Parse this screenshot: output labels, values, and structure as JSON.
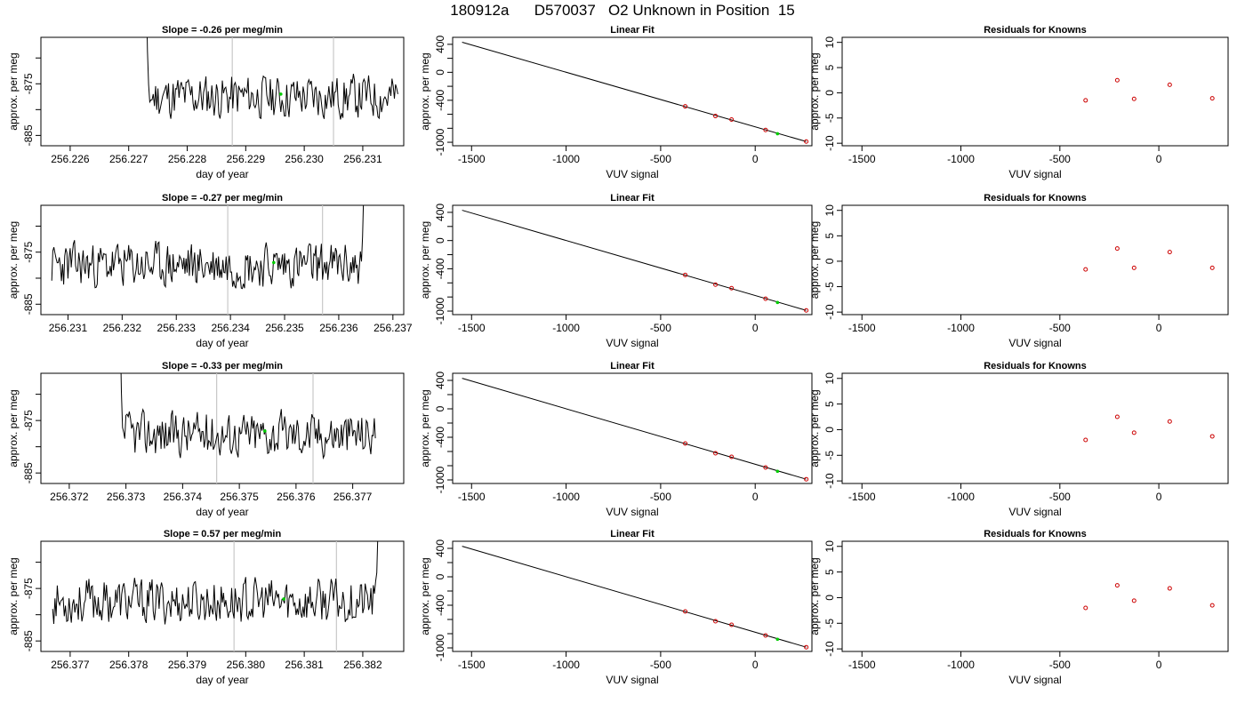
{
  "title": "180912a      D570037   O2 Unknown in Position  15",
  "chart_data": [
    {
      "type": "line",
      "title": "Slope =  -0.26  per meg/min",
      "xlabel": "day of year",
      "ylabel": "approx. per meg",
      "xlim": [
        256.2255,
        256.2317
      ],
      "ylim": [
        -887,
        -866
      ],
      "xticks": [
        256.226,
        256.227,
        256.228,
        256.229,
        256.23,
        256.231
      ],
      "yticks": [
        -885,
        -875
      ],
      "vlines": [
        256.22877,
        256.2305
      ],
      "marker": [
        256.2296,
        -877.0
      ],
      "seed": 11,
      "lead": "high",
      "trail": "none",
      "start": 256.2272,
      "end": 256.2316
    },
    {
      "type": "scatter",
      "title": "Linear Fit",
      "xlabel": "VUV signal",
      "ylabel": "approx. per meg",
      "xlim": [
        -1600,
        300
      ],
      "ylim": [
        -1050,
        500
      ],
      "xticks": [
        -1500,
        -1000,
        -500,
        0
      ],
      "yticks": [
        400,
        0,
        -400,
        -1000
      ],
      "ytick_labels": [
        "400",
        "0",
        "-400",
        "-1000"
      ],
      "line": [
        [
          -1550,
          430
        ],
        [
          270,
          -990
        ]
      ],
      "knowns": [
        [
          -370,
          -487
        ],
        [
          -210,
          -625
        ],
        [
          -125,
          -675
        ],
        [
          55,
          -825
        ],
        [
          270,
          -990
        ]
      ],
      "unknown": [
        118,
        -878
      ]
    },
    {
      "type": "scatter",
      "title": "Residuals for Knowns",
      "xlabel": "VUV signal",
      "ylabel": "approx. per meg",
      "xlim": [
        -1600,
        350
      ],
      "ylim": [
        -10.5,
        11
      ],
      "xticks": [
        -1500,
        -1000,
        -500,
        0
      ],
      "yticks": [
        10,
        5,
        0,
        -5,
        -10
      ],
      "residuals": [
        [
          -370,
          -1.5
        ],
        [
          -210,
          2.5
        ],
        [
          -125,
          -1.2
        ],
        [
          55,
          1.6
        ],
        [
          270,
          -1.1
        ]
      ]
    },
    {
      "type": "line",
      "title": "Slope =  -0.27  per meg/min",
      "xlabel": "day of year",
      "ylabel": "approx. per meg",
      "xlim": [
        256.2305,
        256.2372
      ],
      "ylim": [
        -887,
        -866
      ],
      "xticks": [
        256.231,
        256.232,
        256.233,
        256.234,
        256.235,
        256.236,
        256.237
      ],
      "yticks": [
        -885,
        -875
      ],
      "vlines": [
        256.23395,
        256.2357
      ],
      "marker": [
        256.2348,
        -877.0
      ],
      "seed": 23,
      "lead": "none",
      "trail": "high",
      "start": 256.2307,
      "end": 256.2365
    },
    {
      "type": "scatter",
      "title": "Linear Fit",
      "xlabel": "VUV signal",
      "ylabel": "approx. per meg",
      "xlim": [
        -1600,
        300
      ],
      "ylim": [
        -1050,
        500
      ],
      "xticks": [
        -1500,
        -1000,
        -500,
        0
      ],
      "yticks": [
        400,
        0,
        -400,
        -1000
      ],
      "ytick_labels": [
        "400",
        "0",
        "-400",
        "-1000"
      ],
      "line": [
        [
          -1550,
          430
        ],
        [
          270,
          -990
        ]
      ],
      "knowns": [
        [
          -370,
          -487
        ],
        [
          -210,
          -625
        ],
        [
          -125,
          -675
        ],
        [
          55,
          -825
        ],
        [
          270,
          -990
        ]
      ],
      "unknown": [
        118,
        -878
      ]
    },
    {
      "type": "scatter",
      "title": "Residuals for Knowns",
      "xlabel": "VUV signal",
      "ylabel": "approx. per meg",
      "xlim": [
        -1600,
        350
      ],
      "ylim": [
        -10.5,
        11
      ],
      "xticks": [
        -1500,
        -1000,
        -500,
        0
      ],
      "yticks": [
        10,
        5,
        0,
        -5,
        -10
      ],
      "residuals": [
        [
          -370,
          -1.6
        ],
        [
          -210,
          2.5
        ],
        [
          -125,
          -1.3
        ],
        [
          55,
          1.8
        ],
        [
          270,
          -1.3
        ]
      ]
    },
    {
      "type": "line",
      "title": "Slope =  -0.33  per meg/min",
      "xlabel": "day of year",
      "ylabel": "approx. per meg",
      "xlim": [
        256.3715,
        256.3779
      ],
      "ylim": [
        -887,
        -866
      ],
      "xticks": [
        256.372,
        256.373,
        256.374,
        256.375,
        256.376,
        256.377
      ],
      "yticks": [
        -885,
        -875
      ],
      "vlines": [
        256.3746,
        256.3763
      ],
      "marker": [
        256.37545,
        -877.0
      ],
      "seed": 37,
      "lead": "high",
      "trail": "none",
      "start": 256.3728,
      "end": 256.3774
    },
    {
      "type": "scatter",
      "title": "Linear Fit",
      "xlabel": "VUV signal",
      "ylabel": "approx. per meg",
      "xlim": [
        -1600,
        300
      ],
      "ylim": [
        -1050,
        500
      ],
      "xticks": [
        -1500,
        -1000,
        -500,
        0
      ],
      "yticks": [
        400,
        0,
        -400,
        -1000
      ],
      "ytick_labels": [
        "400",
        "0",
        "-400",
        "-1000"
      ],
      "line": [
        [
          -1550,
          430
        ],
        [
          270,
          -990
        ]
      ],
      "knowns": [
        [
          -370,
          -487
        ],
        [
          -210,
          -625
        ],
        [
          -125,
          -675
        ],
        [
          55,
          -825
        ],
        [
          270,
          -990
        ]
      ],
      "unknown": [
        118,
        -878
      ]
    },
    {
      "type": "scatter",
      "title": "Residuals for Knowns",
      "xlabel": "VUV signal",
      "ylabel": "approx. per meg",
      "xlim": [
        -1600,
        350
      ],
      "ylim": [
        -10.5,
        11
      ],
      "xticks": [
        -1500,
        -1000,
        -500,
        0
      ],
      "yticks": [
        10,
        5,
        0,
        -5,
        -10
      ],
      "residuals": [
        [
          -370,
          -2.0
        ],
        [
          -210,
          2.5
        ],
        [
          -125,
          -0.6
        ],
        [
          55,
          1.6
        ],
        [
          270,
          -1.3
        ]
      ]
    },
    {
      "type": "line",
      "title": "Slope =  0.57  per meg/min",
      "xlabel": "day of year",
      "ylabel": "approx. per meg",
      "xlim": [
        256.3765,
        256.3827
      ],
      "ylim": [
        -887,
        -866
      ],
      "xticks": [
        256.377,
        256.378,
        256.379,
        256.38,
        256.381,
        256.382
      ],
      "yticks": [
        -885,
        -875
      ],
      "vlines": [
        256.3798,
        256.38155
      ],
      "marker": [
        256.38065,
        -877.0
      ],
      "seed": 53,
      "lead": "none",
      "trail": "high",
      "start": 256.3767,
      "end": 256.3823
    },
    {
      "type": "scatter",
      "title": "Linear Fit",
      "xlabel": "VUV signal",
      "ylabel": "approx. per meg",
      "xlim": [
        -1600,
        300
      ],
      "ylim": [
        -1050,
        500
      ],
      "xticks": [
        -1500,
        -1000,
        -500,
        0
      ],
      "yticks": [
        400,
        0,
        -400,
        -1000
      ],
      "ytick_labels": [
        "400",
        "0",
        "-400",
        "-1000"
      ],
      "line": [
        [
          -1550,
          430
        ],
        [
          270,
          -990
        ]
      ],
      "knowns": [
        [
          -370,
          -487
        ],
        [
          -210,
          -625
        ],
        [
          -125,
          -675
        ],
        [
          55,
          -825
        ],
        [
          270,
          -990
        ]
      ],
      "unknown": [
        118,
        -878
      ]
    },
    {
      "type": "scatter",
      "title": "Residuals for Knowns",
      "xlabel": "VUV signal",
      "ylabel": "approx. per meg",
      "xlim": [
        -1600,
        350
      ],
      "ylim": [
        -10.5,
        11
      ],
      "xticks": [
        -1500,
        -1000,
        -500,
        0
      ],
      "yticks": [
        10,
        5,
        0,
        -5,
        -10
      ],
      "residuals": [
        [
          -370,
          -2.0
        ],
        [
          -210,
          2.4
        ],
        [
          -125,
          -0.6
        ],
        [
          55,
          1.8
        ],
        [
          270,
          -1.5
        ]
      ]
    }
  ],
  "colors": {
    "line": "#000000",
    "known": "#cc0000",
    "unknown": "#00cc00",
    "vline": "#c8c8c8",
    "axis": "#000000"
  }
}
